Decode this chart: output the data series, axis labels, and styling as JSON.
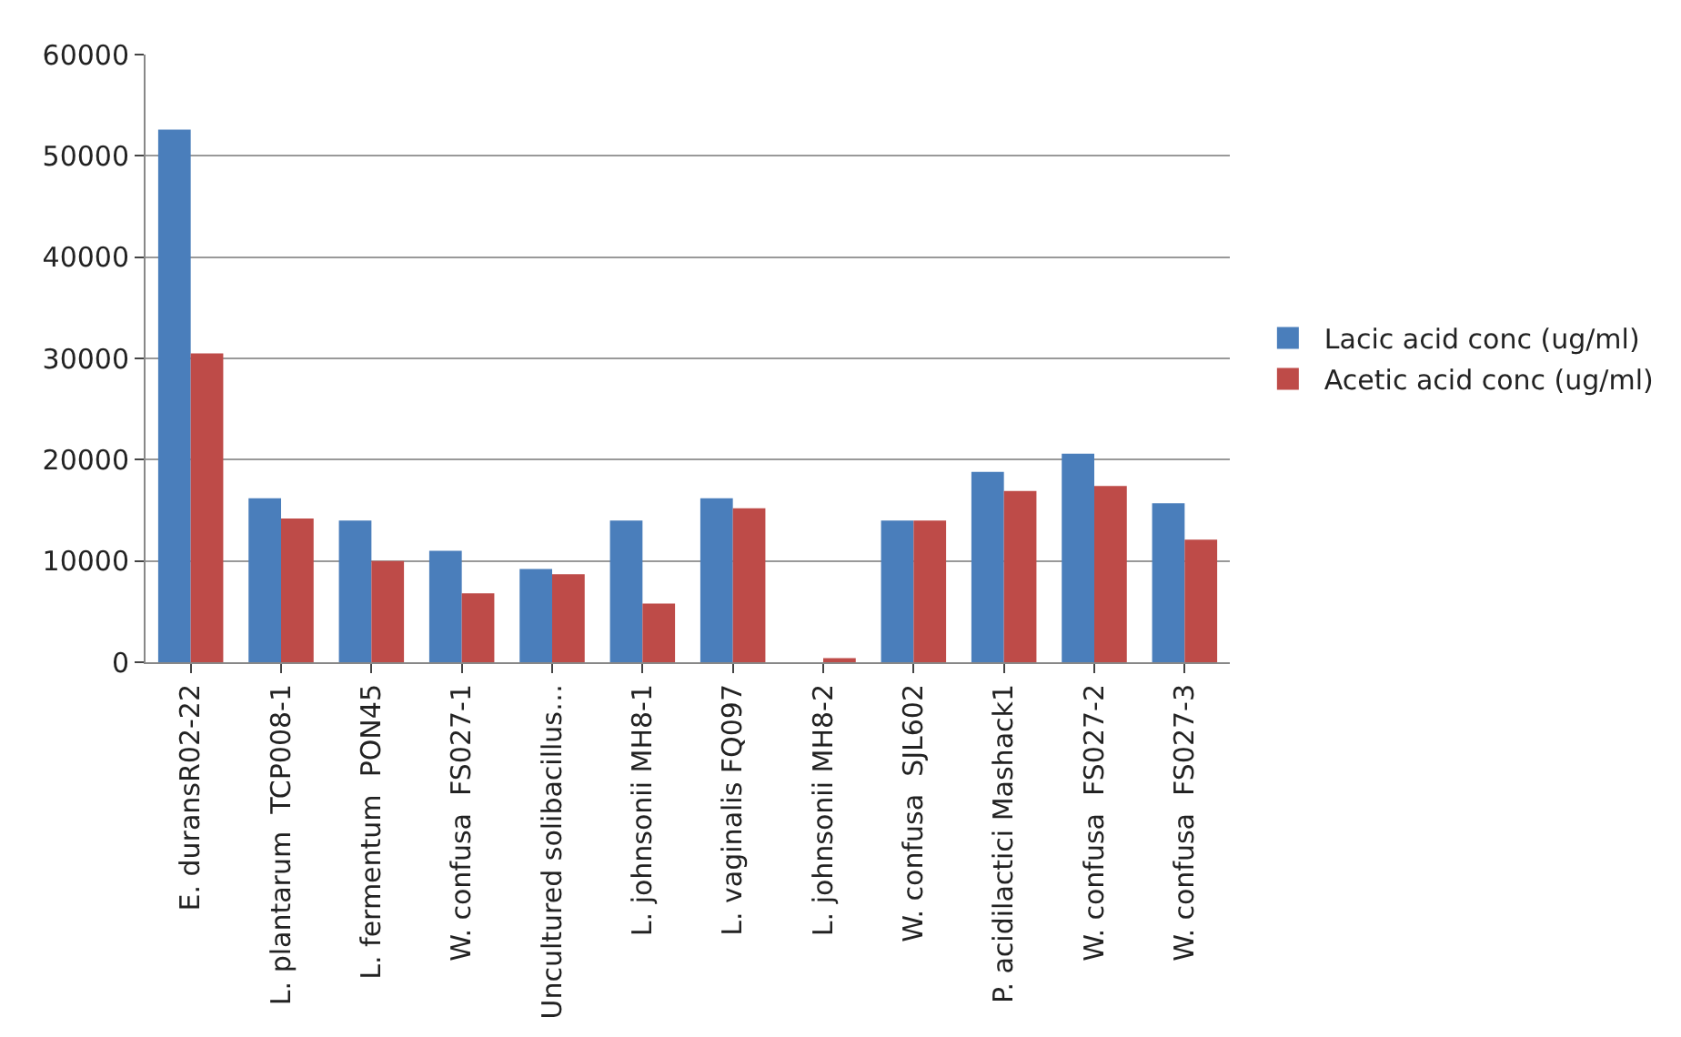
{
  "chart_data": {
    "type": "bar",
    "categories": [
      "E. duransR02-22",
      "L. plantarum  TCP008-1",
      "L. fermentum  PON45",
      "W. confusa  FS027-1",
      "Uncultured solibacillus…",
      "L. johnsonii MH8-1",
      "L. vaginalis FQ097",
      "L. johnsonii MH8-2",
      "W. confusa  SJL602",
      "P. acidilactici Mashack1",
      "W. confusa  FS027-2",
      "W. confusa  FS027-3"
    ],
    "series": [
      {
        "name": "Lacic acid conc (ug/ml)",
        "color": "#4a7ebb",
        "values": [
          52600,
          16200,
          14000,
          11000,
          9200,
          14000,
          16200,
          0,
          14000,
          18800,
          20600,
          15700
        ]
      },
      {
        "name": "Acetic acid conc (ug/ml)",
        "color": "#be4b48",
        "values": [
          30500,
          14200,
          10000,
          6800,
          8700,
          5800,
          15200,
          400,
          14000,
          16900,
          17400,
          12100
        ]
      }
    ],
    "ylim": [
      0,
      60000
    ],
    "yticks": [
      0,
      10000,
      20000,
      30000,
      40000,
      50000,
      60000
    ],
    "grid": "y",
    "legend": "right"
  }
}
